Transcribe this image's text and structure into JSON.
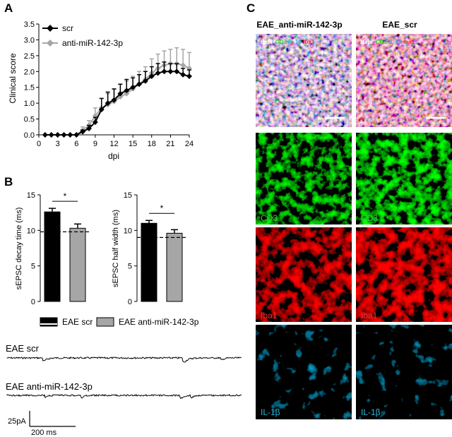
{
  "panels": {
    "A": {
      "letter": "A"
    },
    "B": {
      "letter": "B"
    },
    "C": {
      "letter": "C"
    }
  },
  "colors": {
    "scr": "#000000",
    "anti": "#a6a6a6"
  },
  "chart_data": [
    {
      "type": "line",
      "panel": "A",
      "xlabel": "dpi",
      "ylabel": "Clinical score",
      "xlim": [
        0,
        24
      ],
      "ylim": [
        0,
        3.5
      ],
      "xticks": [
        0,
        3,
        6,
        9,
        12,
        15,
        18,
        21,
        24
      ],
      "yticks": [
        0.0,
        0.5,
        1.0,
        1.5,
        2.0,
        2.5,
        3.0,
        3.5
      ],
      "legend": "top-left",
      "x": [
        1,
        2,
        3,
        4,
        5,
        6,
        7,
        8,
        9,
        10,
        11,
        12,
        13,
        14,
        15,
        16,
        17,
        18,
        19,
        20,
        21,
        22,
        23,
        24
      ],
      "series": [
        {
          "name": "scr",
          "color": "#000000",
          "marker": "diamond",
          "values": [
            0,
            0,
            0,
            0,
            0,
            0,
            0.1,
            0.2,
            0.4,
            0.8,
            1.0,
            1.1,
            1.3,
            1.4,
            1.5,
            1.6,
            1.7,
            1.85,
            1.95,
            2.0,
            2.0,
            2.0,
            1.9,
            1.85
          ],
          "errors": [
            0,
            0,
            0,
            0,
            0,
            0,
            0.05,
            0.1,
            0.15,
            0.35,
            0.35,
            0.35,
            0.3,
            0.35,
            0.3,
            0.3,
            0.3,
            0.3,
            0.3,
            0.3,
            0.25,
            0.25,
            0.2,
            0.2
          ]
        },
        {
          "name": "anti-miR-142-3p",
          "color": "#a6a6a6",
          "marker": "diamond",
          "values": [
            0,
            0,
            0,
            0,
            0,
            0,
            0.15,
            0.3,
            0.6,
            0.85,
            0.95,
            1.05,
            1.2,
            1.3,
            1.45,
            1.6,
            1.75,
            1.95,
            2.1,
            2.2,
            2.25,
            2.25,
            2.2,
            2.1
          ],
          "errors": [
            0,
            0,
            0,
            0,
            0,
            0,
            0.1,
            0.15,
            0.25,
            0.3,
            0.35,
            0.4,
            0.4,
            0.4,
            0.4,
            0.4,
            0.4,
            0.45,
            0.45,
            0.45,
            0.45,
            0.5,
            0.5,
            0.5
          ]
        }
      ]
    },
    {
      "type": "bar",
      "panel": "B-left",
      "ylabel": "sEPSC decay time (ms)",
      "ylim": [
        0,
        15
      ],
      "yticks": [
        0,
        5,
        10,
        15
      ],
      "categories": [
        "EAE scr",
        "EAE anti-miR-142-3p"
      ],
      "values": [
        12.6,
        10.3
      ],
      "errors": [
        0.5,
        0.6
      ],
      "colors": [
        "#000000",
        "#a6a6a6"
      ],
      "baseline": 9.8,
      "significance": "*"
    },
    {
      "type": "bar",
      "panel": "B-right",
      "ylabel": "sEPSC half width (ms)",
      "ylim": [
        0,
        15
      ],
      "yticks": [
        0,
        5,
        10,
        15
      ],
      "categories": [
        "EAE scr",
        "EAE anti-miR-142-3p"
      ],
      "values": [
        11.0,
        9.6
      ],
      "errors": [
        0.4,
        0.5
      ],
      "colors": [
        "#000000",
        "#a6a6a6"
      ],
      "baseline": 9.0,
      "significance": "*"
    }
  ],
  "legendB": [
    {
      "label": "EAE scr",
      "color": "#000000"
    },
    {
      "label": "EAE anti-miR-142-3p",
      "color": "#a6a6a6"
    }
  ],
  "traces": {
    "scr_label": "EAE scr",
    "anti_label": "EAE anti-miR-142-3p",
    "scale_y": "25pA",
    "scale_x": "200 ms"
  },
  "micro": {
    "col1_title": "EAE_anti-miR-142-3p",
    "col2_title": "EAE_scr",
    "merge_labels": [
      "dapi",
      "CD3",
      "IL-1β",
      "Iba1"
    ],
    "merge_colors": [
      "#ffffff",
      "#3ad13a",
      "#29b8d8",
      "#ff3030"
    ],
    "row_labels": [
      "CD3",
      "Iba1",
      "IL-1β"
    ],
    "row_colors": [
      "#3ad13a",
      "#ff3030",
      "#29b8d8"
    ]
  }
}
